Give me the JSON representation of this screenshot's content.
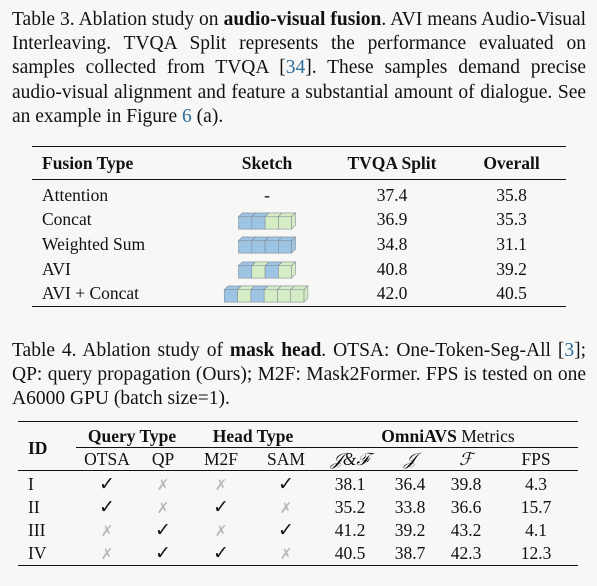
{
  "table3": {
    "caption_label": "Table 3.",
    "caption_pre": " Ablation study on ",
    "caption_bold": "audio-visual fusion",
    "caption_mid": ". AVI means Audio-Visual Interleaving. TVQA Split represents the performance evaluated on samples collected from TVQA [",
    "caption_cite1": "34",
    "caption_mid2": "]. These samples demand precise audio-visual alignment and feature a substantial amount of dialogue. See an example in Figure ",
    "caption_cite2": "6",
    "caption_post": " (a).",
    "headers": [
      "Fusion Type",
      "Sketch",
      "TVQA Split",
      "Overall"
    ],
    "rows": [
      {
        "type": "Attention",
        "sketch": "-",
        "tvqa": "37.4",
        "overall": "35.8"
      },
      {
        "type": "Concat",
        "sketch": "",
        "tvqa": "36.9",
        "overall": "35.3"
      },
      {
        "type": "Weighted Sum",
        "sketch": "",
        "tvqa": "34.8",
        "overall": "31.1"
      },
      {
        "type": "AVI",
        "sketch": "",
        "tvqa": "40.8",
        "overall": "39.2"
      },
      {
        "type": "AVI + Concat",
        "sketch": "",
        "tvqa": "42.0",
        "overall": "40.5"
      }
    ],
    "colors": {
      "visual": "#9ec4e4",
      "audio": "#d6ecc4"
    }
  },
  "table4": {
    "caption_label": "Table 4.",
    "caption_pre": " Ablation study of ",
    "caption_bold": "mask head",
    "caption_mid": ". OTSA: One-Token-Seg-All [",
    "caption_cite1": "3",
    "caption_post": "]; QP: query propagation (Ours); M2F: Mask2Former. FPS is tested on one A6000 GPU (batch size=1).",
    "id_header": "ID",
    "group_query": "Query Type",
    "group_head": "Head Type",
    "group_metrics_bold": "OmniAVS",
    "group_metrics_rest": " Metrics",
    "subheaders": [
      "OTSA",
      "QP",
      "M2F",
      "SAM",
      "𝒥&ℱ",
      "𝒥",
      "ℱ",
      "FPS"
    ],
    "check": "✓",
    "cross": "✗",
    "rows": [
      {
        "id": "I",
        "otsa": true,
        "qp": false,
        "m2f": false,
        "sam": true,
        "jf": "38.1",
        "j": "36.4",
        "f": "39.8",
        "fps": "4.3"
      },
      {
        "id": "II",
        "otsa": true,
        "qp": false,
        "m2f": true,
        "sam": false,
        "jf": "35.2",
        "j": "33.8",
        "f": "36.6",
        "fps": "15.7"
      },
      {
        "id": "III",
        "otsa": false,
        "qp": true,
        "m2f": false,
        "sam": true,
        "jf": "41.2",
        "j": "39.2",
        "f": "43.2",
        "fps": "4.1"
      },
      {
        "id": "IV",
        "otsa": false,
        "qp": true,
        "m2f": true,
        "sam": false,
        "jf": "40.5",
        "j": "38.7",
        "f": "42.3",
        "fps": "12.3"
      }
    ]
  }
}
